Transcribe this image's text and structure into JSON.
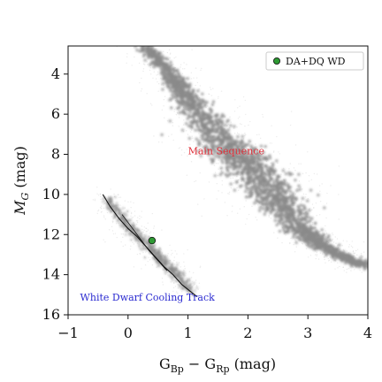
{
  "chart_data": {
    "type": "scatter",
    "xlabel_main": "G",
    "xlabel_sub1": "Bp",
    "xlabel_mid": " − G",
    "xlabel_sub2": "Rp",
    "xlabel_unit": " (mag)",
    "ylabel_main": "M",
    "ylabel_sub": "G",
    "ylabel_unit": " (mag)",
    "xlim": [
      -1,
      4
    ],
    "ylim": [
      16,
      2.6
    ],
    "y_inverted": true,
    "x_ticks": [
      -1,
      0,
      1,
      2,
      3,
      4
    ],
    "x_tick_labels": [
      "−1",
      "0",
      "1",
      "2",
      "3",
      "4"
    ],
    "y_ticks": [
      4,
      6,
      8,
      10,
      12,
      14,
      16
    ],
    "y_tick_labels": [
      "4",
      "6",
      "8",
      "10",
      "12",
      "14",
      "16"
    ],
    "grid": false,
    "legend_position": "top-right",
    "series": [
      {
        "name": "DA+DQ WD",
        "color": "#2e9a34",
        "points": [
          {
            "x": 0.4,
            "y": 12.3
          }
        ]
      }
    ],
    "background_population": {
      "color": "#8a8a8a",
      "main_sequence_ridge": [
        [
          0.3,
          2.6
        ],
        [
          0.7,
          4.0
        ],
        [
          1.0,
          5.2
        ],
        [
          1.35,
          6.6
        ],
        [
          1.7,
          7.8
        ],
        [
          2.0,
          8.6
        ],
        [
          2.3,
          9.5
        ],
        [
          2.55,
          10.4
        ],
        [
          2.8,
          11.5
        ],
        [
          3.1,
          12.3
        ],
        [
          3.5,
          13.0
        ],
        [
          3.95,
          13.6
        ]
      ],
      "wd_ridge": [
        [
          -0.4,
          10.0
        ],
        [
          -0.2,
          10.8
        ],
        [
          0.0,
          11.5
        ],
        [
          0.2,
          12.1
        ],
        [
          0.4,
          12.7
        ],
        [
          0.6,
          13.3
        ],
        [
          0.8,
          13.9
        ],
        [
          1.0,
          14.6
        ]
      ]
    },
    "annotations": [
      {
        "text": "Main Sequence",
        "color": "#e0303a",
        "x": 1.0,
        "y": 8.0
      },
      {
        "text": "White Dwarf Cooling Track",
        "color": "#2a2ad0",
        "x": -0.8,
        "y": 15.3
      }
    ],
    "cooling_track_model": [
      [
        -0.42,
        10.0
      ],
      [
        -0.3,
        10.6
      ],
      [
        -0.15,
        11.2
      ],
      [
        0.0,
        11.7
      ],
      [
        0.15,
        12.1
      ],
      [
        0.3,
        12.6
      ],
      [
        0.45,
        13.1
      ],
      [
        0.6,
        13.6
      ],
      [
        0.75,
        14.0
      ],
      [
        0.9,
        14.5
      ],
      [
        1.15,
        15.1
      ]
    ],
    "cooling_track_model_2": [
      [
        -0.1,
        11.0
      ],
      [
        0.05,
        11.6
      ],
      [
        0.2,
        12.2
      ],
      [
        0.35,
        12.8
      ],
      [
        0.5,
        13.3
      ],
      [
        0.65,
        13.8
      ]
    ]
  }
}
